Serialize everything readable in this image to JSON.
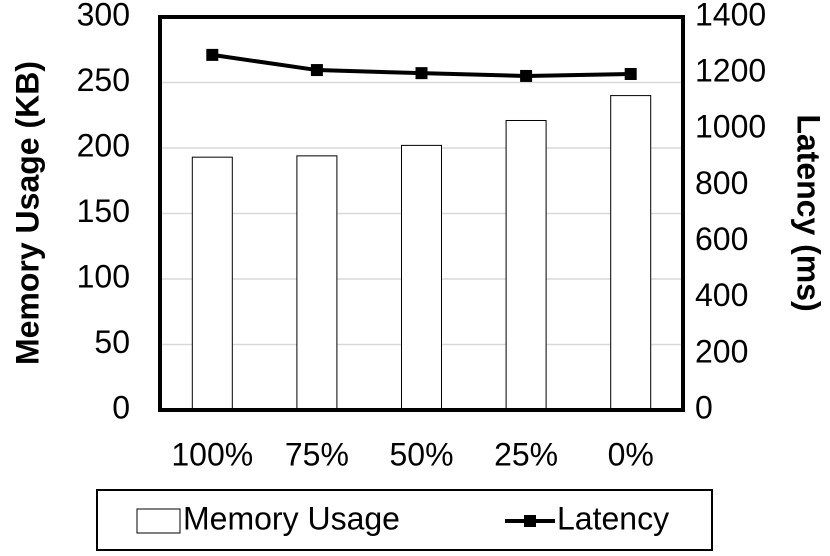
{
  "chart_data": {
    "type": "bar_line",
    "categories": [
      "100%",
      "75%",
      "50%",
      "25%",
      "0%"
    ],
    "series": [
      {
        "name": "Memory Usage",
        "type": "bar",
        "color": "#ffffff",
        "values": [
          193,
          194,
          202,
          221,
          240
        ]
      },
      {
        "name": "Latency",
        "type": "line",
        "color": "#000000",
        "axis": "y2",
        "values": [
          1265,
          1211,
          1200,
          1190,
          1197
        ]
      }
    ],
    "y_label": "Memory Usage (KB)",
    "y2_label": "Latency (ms)",
    "ylim": [
      0,
      300
    ],
    "yticks": [
      0,
      50,
      100,
      150,
      200,
      250,
      300
    ],
    "y2lim": [
      0,
      1400
    ],
    "y2ticks": [
      0,
      200,
      400,
      600,
      800,
      1000,
      1200,
      1400
    ],
    "grid": true
  }
}
